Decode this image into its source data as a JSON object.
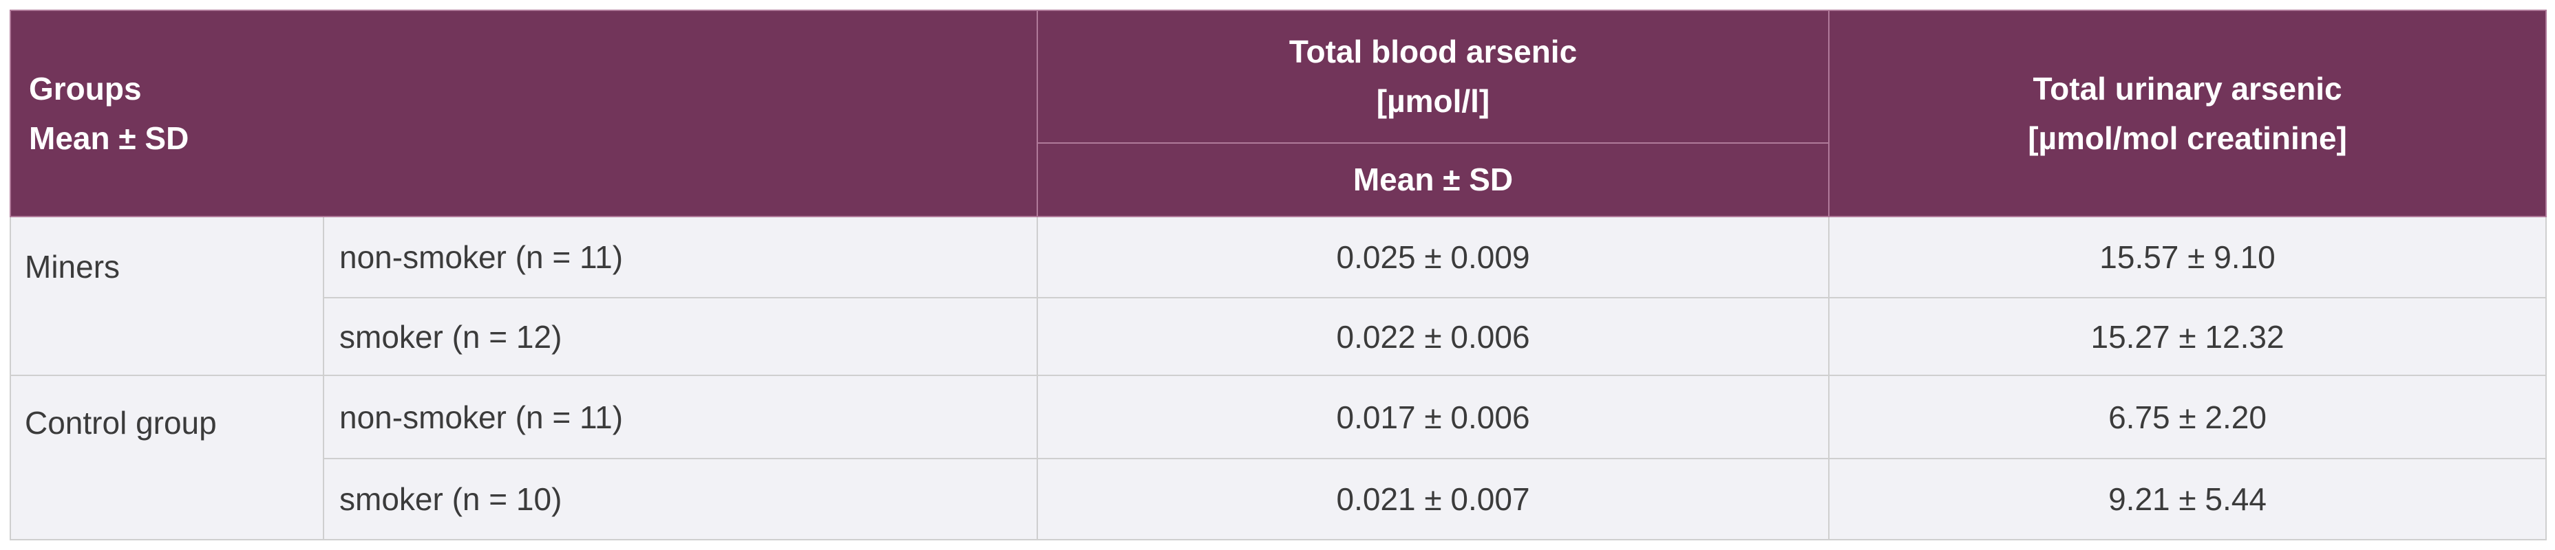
{
  "header": {
    "groups_line1": "Groups",
    "groups_line2": "Mean ± SD",
    "blood_line1": "Total blood arsenic",
    "blood_line2": "[µmol/l]",
    "urine_line1": "Total urinary arsenic",
    "urine_line2": "[µmol/mol creatinine]",
    "sub_label": "Mean ± SD"
  },
  "groups": [
    {
      "name": "Miners",
      "rows": [
        {
          "label": "non-smoker (n = 11)",
          "blood": "0.025 ± 0.009",
          "urine": "15.57 ± 9.10"
        },
        {
          "label": "smoker (n = 12)",
          "blood": "0.022 ± 0.006",
          "urine": "15.27 ± 12.32"
        }
      ]
    },
    {
      "name": "Control group",
      "rows": [
        {
          "label": "non-smoker (n = 11)",
          "blood": "0.017 ± 0.006",
          "urine": "6.75 ± 2.20"
        },
        {
          "label": "smoker (n = 10)",
          "blood": "0.021 ± 0.007",
          "urine": "9.21 ± 5.44"
        }
      ]
    }
  ],
  "colors": {
    "header_bg": "#72355a",
    "header_text": "#ffffff",
    "cell_bg": "#f2f2f6",
    "border": "#cfcfcf"
  }
}
